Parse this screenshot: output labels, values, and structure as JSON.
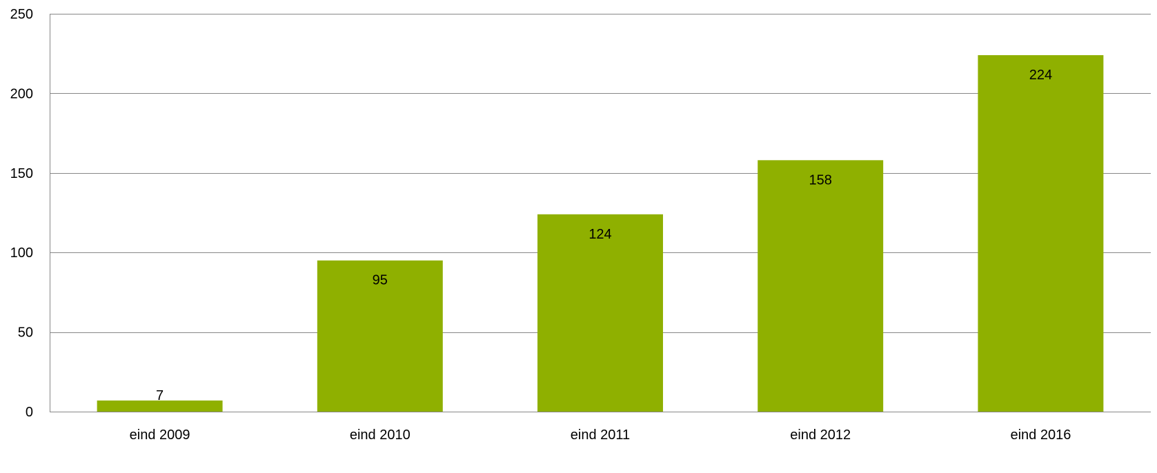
{
  "chart_data": {
    "type": "bar",
    "categories": [
      "eind 2009",
      "eind 2010",
      "eind 2011",
      "eind 2012",
      "eind 2016"
    ],
    "values": [
      7,
      95,
      124,
      158,
      224
    ],
    "data_labels": [
      "7",
      "95",
      "124",
      "158",
      "224"
    ],
    "yticks": [
      0,
      50,
      100,
      150,
      200,
      250
    ],
    "ylim": [
      0,
      250
    ],
    "grid": true,
    "legend": "none",
    "bar_color": "#8FB000",
    "grid_color": "#868686"
  }
}
